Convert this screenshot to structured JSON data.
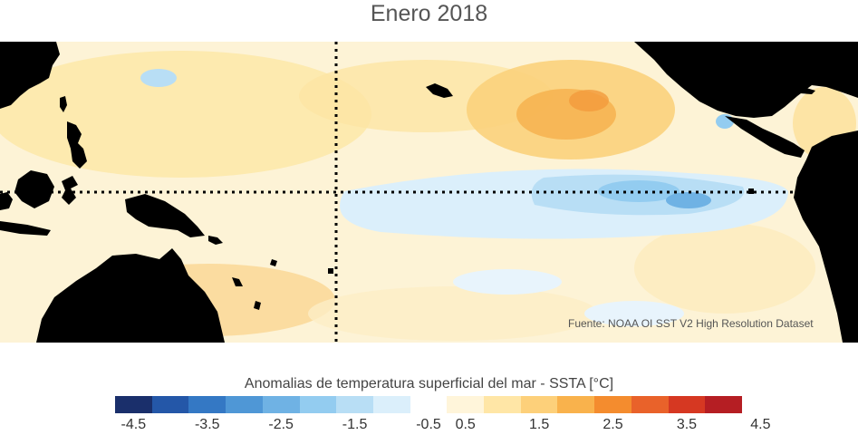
{
  "title": "Enero 2018",
  "source": "Fuente: NOAA OI SST V2 High Resolution Dataset",
  "colorbar": {
    "title": "Anomalias de temperatura superficial del mar - SSTA  [°C]",
    "colors": [
      "#1a2f6b",
      "#2457a8",
      "#3478c4",
      "#4f97d6",
      "#6fb2e4",
      "#93ccf0",
      "#b8def5",
      "#dbeffb",
      "#ffffff",
      "#fff5da",
      "#ffe6a6",
      "#fdd07a",
      "#f9b24c",
      "#f48c2e",
      "#e9622a",
      "#d63822",
      "#b51e23"
    ],
    "ticks": [
      "-4.5",
      "-3.5",
      "-2.5",
      "-1.5",
      "-0.5",
      "0.5",
      "1.5",
      "2.5",
      "3.5",
      "4.5"
    ]
  }
}
